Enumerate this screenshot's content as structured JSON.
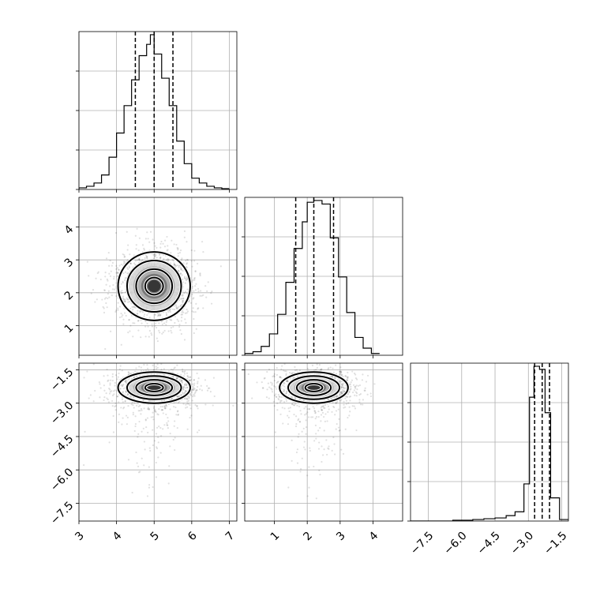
{
  "chart_data": {
    "type": "corner",
    "parameters": [
      {
        "range": [
          3,
          7.2
        ],
        "ticks": [
          3,
          4,
          5,
          6,
          7
        ],
        "tick_labels": [
          "3",
          "4",
          "5",
          "6",
          "7"
        ]
      },
      {
        "range": [
          0.1,
          4.9
        ],
        "ticks": [
          1,
          2,
          3,
          4
        ],
        "tick_labels": [
          "1",
          "2",
          "3",
          "4"
        ]
      },
      {
        "range": [
          -8.3,
          -1.2
        ],
        "ticks": [
          -7.5,
          -6.0,
          -4.5,
          -3.0,
          -1.5
        ],
        "tick_labels": [
          "−7.5",
          "−6.0",
          "−4.5",
          "−3.0",
          "−1.5"
        ]
      }
    ],
    "histograms": [
      {
        "param": 0,
        "bin_edges": [
          3.0,
          3.2,
          3.4,
          3.6,
          3.8,
          4.0,
          4.2,
          4.4,
          4.6,
          4.8,
          4.9,
          5.0,
          5.2,
          5.4,
          5.6,
          5.8,
          6.0,
          6.2,
          6.4,
          6.6,
          6.8,
          7.0
        ],
        "counts": [
          0.01,
          0.02,
          0.04,
          0.09,
          0.2,
          0.35,
          0.52,
          0.68,
          0.83,
          0.9,
          0.96,
          0.84,
          0.69,
          0.52,
          0.3,
          0.16,
          0.07,
          0.04,
          0.02,
          0.01,
          0.005
        ],
        "quantiles": [
          4.5,
          5.0,
          5.5
        ]
      },
      {
        "param": 1,
        "bin_edges": [
          0.1,
          0.35,
          0.6,
          0.85,
          1.1,
          1.35,
          1.6,
          1.85,
          2.0,
          2.2,
          2.45,
          2.7,
          2.95,
          3.2,
          3.45,
          3.7,
          3.95,
          4.2
        ],
        "counts": [
          0.01,
          0.02,
          0.05,
          0.12,
          0.23,
          0.41,
          0.6,
          0.75,
          0.86,
          0.87,
          0.85,
          0.66,
          0.44,
          0.24,
          0.1,
          0.04,
          0.01
        ],
        "quantiles": [
          1.65,
          2.2,
          2.8
        ]
      },
      {
        "param": 2,
        "bin_edges": [
          -8.3,
          -6.4,
          -5.5,
          -5.0,
          -4.5,
          -4.0,
          -3.6,
          -3.2,
          -2.95,
          -2.75,
          -2.5,
          -2.25,
          -2.0,
          -1.6,
          -1.2
        ],
        "counts": [
          0.0,
          0.005,
          0.01,
          0.015,
          0.02,
          0.035,
          0.06,
          0.24,
          0.8,
          1.0,
          0.98,
          0.7,
          0.15,
          0.01
        ],
        "quantiles": [
          -2.72,
          -2.38,
          -2.05
        ]
      }
    ],
    "joint_panels": [
      {
        "x_param": 0,
        "y_param": 1,
        "center": [
          5.0,
          2.2
        ],
        "spread": [
          0.48,
          0.52
        ],
        "contour_levels": [
          0.5,
          1.0,
          1.5,
          2.0
        ]
      },
      {
        "x_param": 0,
        "y_param": 2,
        "center": [
          5.0,
          -2.3
        ],
        "spread": [
          0.48,
          0.35
        ],
        "contour_levels": [
          0.5,
          1.0,
          1.5,
          2.0
        ]
      },
      {
        "x_param": 1,
        "y_param": 2,
        "center": [
          2.2,
          -2.3
        ],
        "spread": [
          0.52,
          0.35
        ],
        "contour_levels": [
          0.5,
          1.0,
          1.5,
          2.0
        ]
      }
    ],
    "grid": true
  }
}
